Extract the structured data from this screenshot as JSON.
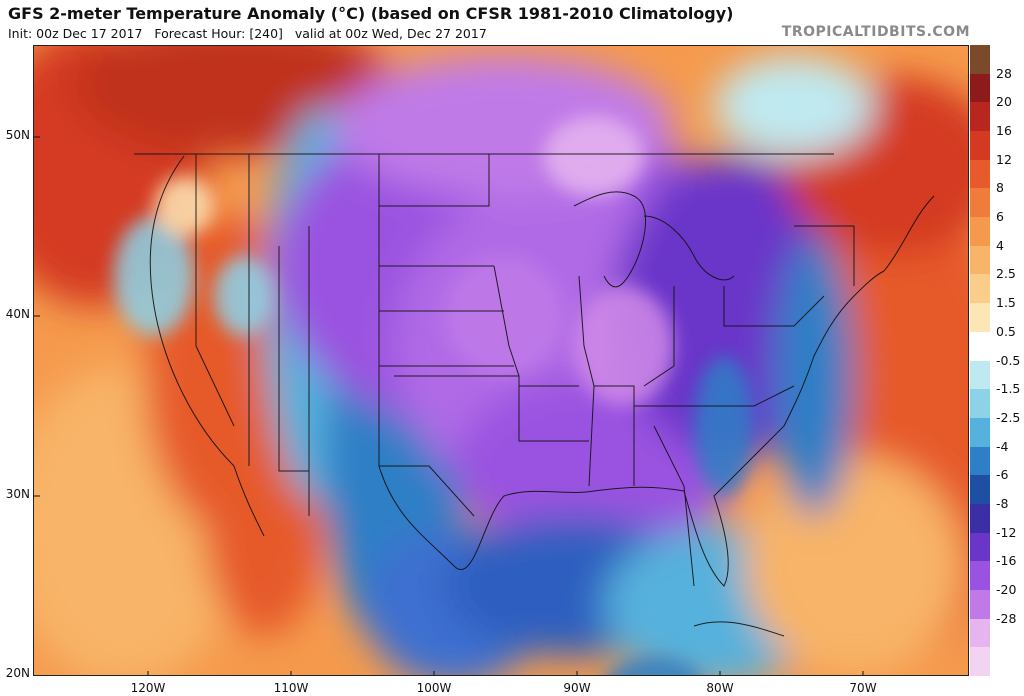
{
  "header": {
    "title": "GFS 2-meter Temperature Anomaly (°C) (based on CFSR 1981-2010 Climatology)",
    "subtitle": "Init: 00z Dec 17 2017   Forecast Hour: [240]   valid at 00z Wed, Dec 27 2017",
    "brand": "TROPICALTIDBITS.COM"
  },
  "map": {
    "lat_labels": [
      {
        "text": "50N",
        "lat": 50
      },
      {
        "text": "40N",
        "lat": 40
      },
      {
        "text": "30N",
        "lat": 30
      },
      {
        "text": "20N",
        "lat": 20
      }
    ],
    "lon_labels": [
      {
        "text": "120W",
        "lon": -120
      },
      {
        "text": "110W",
        "lon": -110
      },
      {
        "text": "100W",
        "lon": -100
      },
      {
        "text": "90W",
        "lon": -90
      },
      {
        "text": "80W",
        "lon": -80
      },
      {
        "text": "70W",
        "lon": -70
      }
    ]
  },
  "colorbar": {
    "labels": [
      "28",
      "20",
      "16",
      "12",
      "8",
      "6",
      "4",
      "2.5",
      "1.5",
      "0.5",
      "-0.5",
      "-1.5",
      "-2.5",
      "-4",
      "-6",
      "-8",
      "-12",
      "-16",
      "-20",
      "-28"
    ],
    "colors": [
      "#7a4a2a",
      "#8e1b1b",
      "#b8271f",
      "#d43a22",
      "#e65a2c",
      "#ef7c3a",
      "#f59a4d",
      "#f8b468",
      "#fbcd8a",
      "#fde6b5",
      "#ffffff",
      "#bfe9f0",
      "#8cd3e8",
      "#56b1dc",
      "#2e7fc6",
      "#1f4fa3",
      "#3c2fa6",
      "#6a35c9",
      "#9a52e0",
      "#c07ae8",
      "#e6b5ef",
      "#f3d3f2"
    ]
  }
}
